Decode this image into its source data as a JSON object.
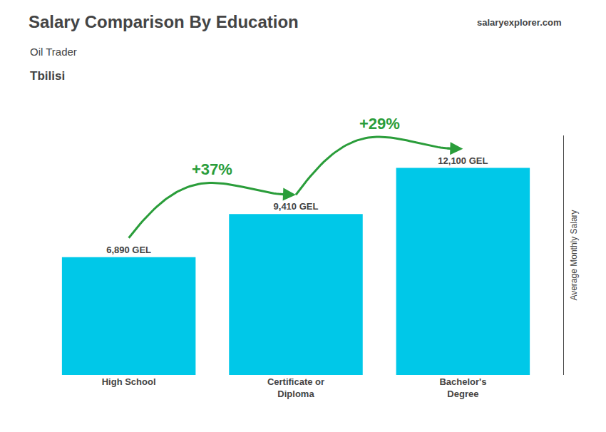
{
  "chart_data": {
    "type": "bar",
    "title": "Salary Comparison By Education",
    "subtitle": [
      "Oil Trader",
      "Tbilisi"
    ],
    "ylabel": "Average Monthly Salary",
    "categories": [
      "High School",
      "Certificate or\nDiploma",
      "Bachelor's\nDegree"
    ],
    "values": [
      6890,
      9410,
      12100
    ],
    "value_labels": [
      "6,890 GEL",
      "9,410 GEL",
      "12,100 GEL"
    ],
    "data_labels": true,
    "color": "#00c8e8",
    "ylim": [
      0,
      14000
    ],
    "grid": false,
    "tick_labels": "x",
    "annotations": [
      "+37%",
      "+29%",
      "salaryexplorer.com"
    ]
  }
}
